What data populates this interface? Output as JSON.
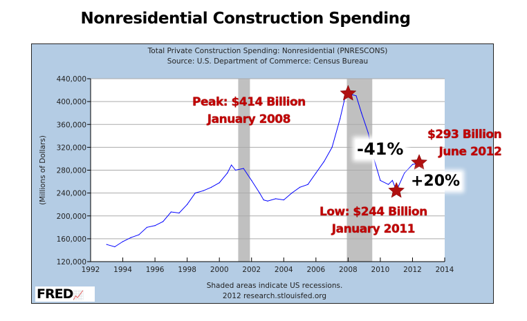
{
  "title": "Nonresidential Construction Spending",
  "chart_data": {
    "type": "line",
    "title": "Total Private Construction Spending: Nonresidential (PNRESCONS)",
    "subtitle": "Source: U.S. Department of Commerce: Census Bureau",
    "ylabel": "(Millions of Dollars)",
    "xlabel": "",
    "xlim": [
      1992,
      2014
    ],
    "ylim": [
      120000,
      440000
    ],
    "xticks": [
      "1992",
      "1994",
      "1996",
      "1998",
      "2000",
      "2002",
      "2004",
      "2006",
      "2008",
      "2010",
      "2012",
      "2014"
    ],
    "yticks": [
      "120,000",
      "160,000",
      "200,000",
      "240,000",
      "280,000",
      "320,000",
      "360,000",
      "400,000",
      "440,000"
    ],
    "grid": true,
    "line_color": "#0000ff",
    "recession_color": "#c0c0c0",
    "recessions": [
      [
        2001.17,
        2001.9
      ],
      [
        2007.92,
        2009.5
      ]
    ],
    "x": [
      1993.0,
      1993.5,
      1994.0,
      1994.5,
      1995.0,
      1995.5,
      1996.0,
      1996.5,
      1997.0,
      1997.5,
      1998.0,
      1998.5,
      1999.0,
      1999.5,
      2000.0,
      2000.5,
      2000.75,
      2001.0,
      2001.5,
      2002.0,
      2002.5,
      2002.75,
      2003.0,
      2003.5,
      2004.0,
      2004.5,
      2005.0,
      2005.5,
      2006.0,
      2006.5,
      2007.0,
      2007.5,
      2007.83,
      2008.0,
      2008.5,
      2008.83,
      2009.25,
      2009.5,
      2010.0,
      2010.5,
      2010.75,
      2011.0,
      2011.5,
      2012.0,
      2012.5
    ],
    "values": [
      150000,
      146000,
      155000,
      162000,
      167000,
      180000,
      183000,
      190000,
      207000,
      205000,
      220000,
      240000,
      244000,
      250000,
      258000,
      275000,
      289000,
      280000,
      283000,
      262000,
      240000,
      228000,
      226000,
      230000,
      228000,
      240000,
      250000,
      255000,
      275000,
      295000,
      320000,
      370000,
      410000,
      414000,
      410000,
      380000,
      345000,
      310000,
      262000,
      255000,
      262000,
      244000,
      275000,
      290000,
      293000
    ],
    "footer": [
      "Shaded areas indicate US recessions.",
      "2012 research.stlouisfed.org"
    ],
    "annotations": {
      "peak": [
        "Peak: $414 Billion",
        "January 2008"
      ],
      "low": [
        "Low: $244 Billion",
        "January 2011"
      ],
      "latest": [
        "$293 Billion",
        "June 2012"
      ],
      "decline": "-41%",
      "rise": "+20%"
    },
    "annotation_color": "#c00000",
    "star_points": [
      [
        2008.0,
        414000
      ],
      [
        2011.0,
        244000
      ],
      [
        2012.5,
        293000
      ]
    ]
  },
  "logo": "FRED"
}
